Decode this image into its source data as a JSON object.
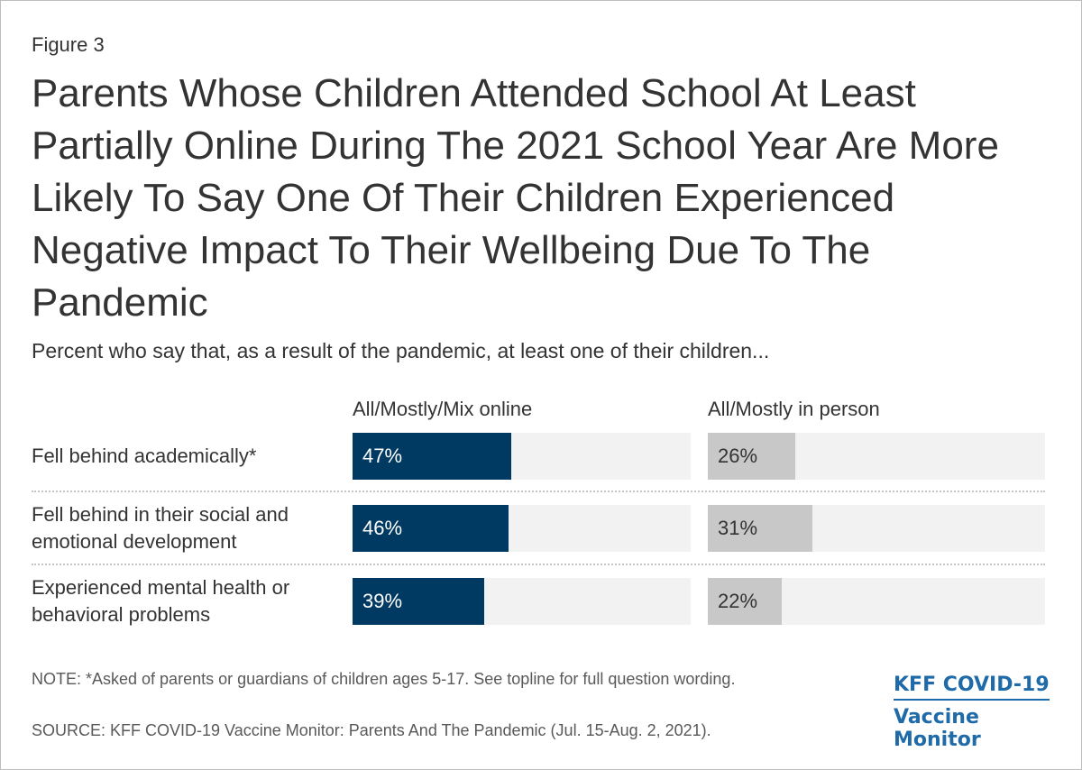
{
  "figure_label": "Figure 3",
  "chart_data": {
    "type": "bar",
    "title": "Parents Whose Children Attended School At Least Partially Online During The 2021 School Year Are More Likely To Say One Of Their Children Experienced Negative Impact To Their Wellbeing Due To The Pandemic",
    "subtitle": "Percent who say that, as a result of the pandemic, at least one of their children...",
    "categories": [
      "Fell behind academically*",
      "Fell behind in their social and emotional development",
      "Experienced mental health or behavioral problems"
    ],
    "series": [
      {
        "name": "All/Mostly/Mix online",
        "values": [
          47,
          46,
          39
        ],
        "labels": [
          "47%",
          "46%",
          "39%"
        ],
        "color": "#003a63"
      },
      {
        "name": "All/Mostly in person",
        "values": [
          26,
          31,
          22
        ],
        "labels": [
          "26%",
          "31%",
          "22%"
        ],
        "color": "#c8c8c8"
      }
    ],
    "xlim": [
      0,
      100
    ],
    "unit": "%"
  },
  "note": "NOTE: *Asked of parents or guardians of children ages 5-17. See topline for full question wording.",
  "source": "SOURCE: KFF COVID-19 Vaccine Monitor: Parents And The Pandemic (Jul. 15-Aug. 2, 2021).",
  "logo": {
    "line1": "KFF COVID-19",
    "line2": "Vaccine Monitor",
    "color": "#1f6aa8"
  }
}
